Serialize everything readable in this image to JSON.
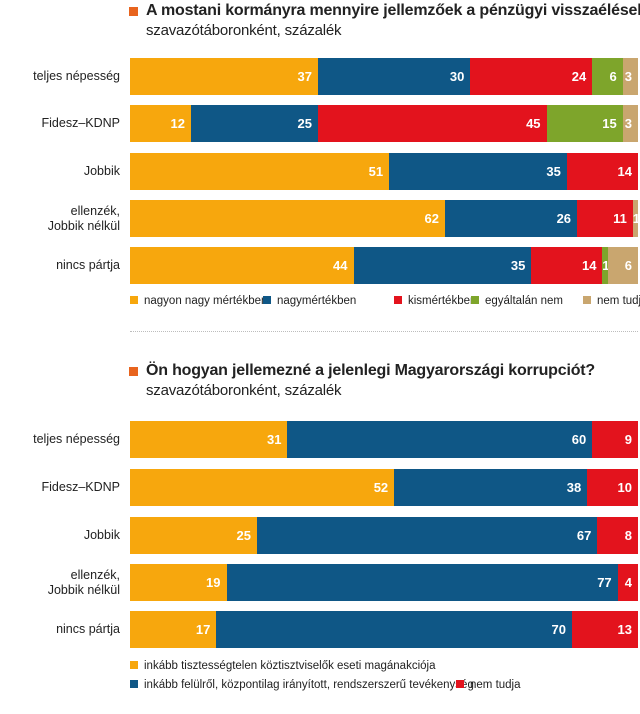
{
  "colors": {
    "orange": "#f7a70d",
    "blue": "#0f5786",
    "red": "#e3131d",
    "green": "#7ea52b",
    "tan": "#c9a66f",
    "title_marker": "#e8641e"
  },
  "chart_data": [
    {
      "type": "bar",
      "orientation": "horizontal",
      "stacked": true,
      "title": "A mostani kormányra mennyire jellemzőek a pénzügyi visszaélések?",
      "subtitle": "szavazótáboronként, százalék",
      "categories": [
        "teljes népesség",
        "Fidesz–KDNP",
        "Jobbik",
        "ellenzék,\nJobbik nélkül",
        "nincs pártja"
      ],
      "series": [
        {
          "name": "nagyon nagy mértékben",
          "color": "orange",
          "values": [
            37,
            12,
            51,
            62,
            44
          ]
        },
        {
          "name": "nagymértékben",
          "color": "blue",
          "values": [
            30,
            25,
            35,
            26,
            35
          ]
        },
        {
          "name": "kismértékben",
          "color": "red",
          "values": [
            24,
            45,
            14,
            11,
            14
          ]
        },
        {
          "name": "egyáltalán nem",
          "color": "green",
          "values": [
            6,
            15,
            0,
            0,
            1
          ]
        },
        {
          "name": "nem tudja",
          "color": "tan",
          "values": [
            3,
            3,
            0,
            1,
            6
          ]
        }
      ],
      "xlim": [
        0,
        100
      ],
      "legend_position": "bottom"
    },
    {
      "type": "bar",
      "orientation": "horizontal",
      "stacked": true,
      "title": "Ön hogyan jellemezné a jelenlegi Magyarországi korrupciót?",
      "subtitle": "szavazótáboronként, százalék",
      "categories": [
        "teljes népesség",
        "Fidesz–KDNP",
        "Jobbik",
        "ellenzék,\nJobbik nélkül",
        "nincs pártja"
      ],
      "series": [
        {
          "name": "inkább tisztességtelen köztisztviselők eseti magánakciója",
          "color": "orange",
          "values": [
            31,
            52,
            25,
            19,
            17
          ]
        },
        {
          "name": "inkább felülről, központilag irányított, rendszerszerű tevékenység",
          "color": "blue",
          "values": [
            60,
            38,
            67,
            77,
            70
          ]
        },
        {
          "name": "nem tudja",
          "color": "red",
          "values": [
            9,
            10,
            8,
            4,
            13
          ]
        }
      ],
      "xlim": [
        0,
        100
      ],
      "legend_position": "bottom"
    }
  ]
}
